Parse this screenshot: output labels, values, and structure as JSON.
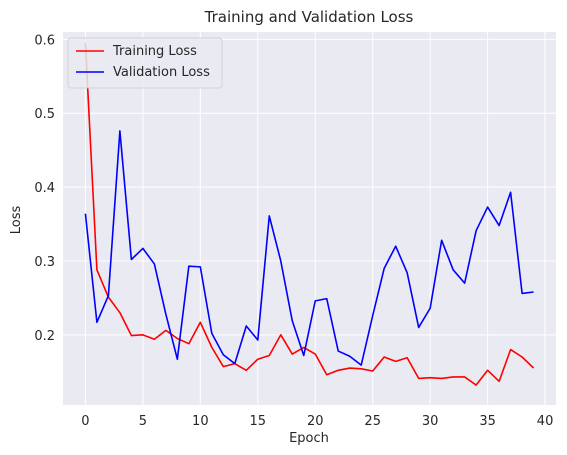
{
  "chart_data": {
    "type": "line",
    "title": "Training and Validation Loss",
    "xlabel": "Epoch",
    "ylabel": "Loss",
    "xlim": [
      -1.95,
      40.95
    ],
    "ylim": [
      0.105,
      0.61
    ],
    "xticks": [
      0,
      5,
      10,
      15,
      20,
      25,
      30,
      35,
      40
    ],
    "yticks": [
      0.2,
      0.3,
      0.4,
      0.5,
      0.6
    ],
    "ytick_labels": [
      "0.2",
      "0.3",
      "0.4",
      "0.5",
      "0.6"
    ],
    "grid": true,
    "legend_position": "top-left",
    "background_color": "#eaeaf2",
    "grid_color": "#ffffff",
    "x": [
      0,
      1,
      2,
      3,
      4,
      5,
      6,
      7,
      8,
      9,
      10,
      11,
      12,
      13,
      14,
      15,
      16,
      17,
      18,
      19,
      20,
      21,
      22,
      23,
      24,
      25,
      26,
      27,
      28,
      29,
      30,
      31,
      32,
      33,
      34,
      35,
      36,
      37,
      38,
      39
    ],
    "series": [
      {
        "name": "Training Loss",
        "color": "#ff0000",
        "values": [
          0.595,
          0.288,
          0.251,
          0.23,
          0.199,
          0.2,
          0.194,
          0.206,
          0.195,
          0.188,
          0.217,
          0.183,
          0.157,
          0.161,
          0.152,
          0.167,
          0.172,
          0.2,
          0.174,
          0.183,
          0.174,
          0.146,
          0.152,
          0.155,
          0.154,
          0.151,
          0.17,
          0.164,
          0.169,
          0.141,
          0.142,
          0.141,
          0.143,
          0.143,
          0.132,
          0.152,
          0.137,
          0.18,
          0.17,
          0.155
        ]
      },
      {
        "name": "Validation Loss",
        "color": "#0000ff",
        "values": [
          0.364,
          0.217,
          0.253,
          0.476,
          0.302,
          0.317,
          0.296,
          0.228,
          0.167,
          0.293,
          0.292,
          0.202,
          0.173,
          0.161,
          0.212,
          0.193,
          0.361,
          0.3,
          0.219,
          0.172,
          0.246,
          0.249,
          0.178,
          0.171,
          0.159,
          0.226,
          0.29,
          0.32,
          0.284,
          0.21,
          0.236,
          0.328,
          0.288,
          0.27,
          0.341,
          0.373,
          0.348,
          0.393,
          0.256,
          0.258
        ]
      }
    ]
  }
}
